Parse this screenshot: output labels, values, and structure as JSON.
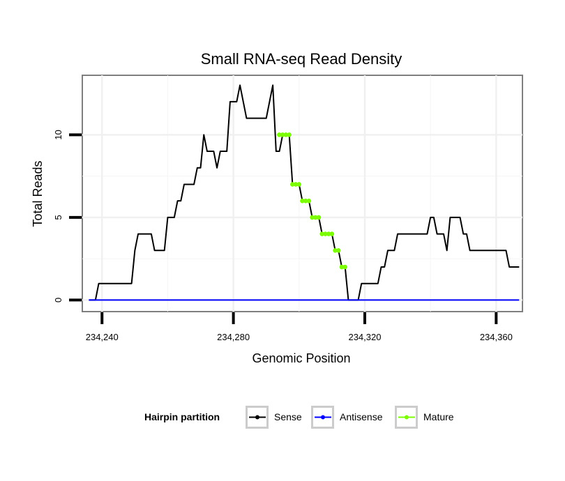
{
  "chart_data": {
    "type": "line",
    "title": "Small RNA-seq Read Density",
    "xlabel": "Genomic Position",
    "ylabel": "Total Reads",
    "xlim": [
      234234,
      234368
    ],
    "ylim": [
      -0.7,
      13.6
    ],
    "x_ticks": [
      234240,
      234280,
      234320,
      234360
    ],
    "x_tick_labels": [
      "234,240",
      "234,280",
      "234,320",
      "234,360"
    ],
    "y_ticks": [
      0,
      5,
      10
    ],
    "y_tick_labels": [
      "0",
      "5",
      "10"
    ],
    "grid": true,
    "legend": {
      "title": "Hairpin partition",
      "placement": "bottom",
      "entries": [
        {
          "name": "Sense",
          "color": "#000000"
        },
        {
          "name": "Antisense",
          "color": "#0000ff"
        },
        {
          "name": "Mature",
          "color": "#7cfc00"
        }
      ]
    },
    "series": [
      {
        "name": "Sense",
        "color": "#000000",
        "points": [
          [
            234236,
            0
          ],
          [
            234238,
            0
          ],
          [
            234239,
            1
          ],
          [
            234240,
            1
          ],
          [
            234241,
            1
          ],
          [
            234242,
            1
          ],
          [
            234243,
            1
          ],
          [
            234244,
            1
          ],
          [
            234245,
            1
          ],
          [
            234246,
            1
          ],
          [
            234247,
            1
          ],
          [
            234248,
            1
          ],
          [
            234249,
            1
          ],
          [
            234250,
            3
          ],
          [
            234251,
            4
          ],
          [
            234252,
            4
          ],
          [
            234253,
            4
          ],
          [
            234254,
            4
          ],
          [
            234255,
            4
          ],
          [
            234256,
            3
          ],
          [
            234257,
            3
          ],
          [
            234258,
            3
          ],
          [
            234259,
            3
          ],
          [
            234260,
            5
          ],
          [
            234261,
            5
          ],
          [
            234262,
            5
          ],
          [
            234263,
            6
          ],
          [
            234264,
            6
          ],
          [
            234265,
            7
          ],
          [
            234266,
            7
          ],
          [
            234267,
            7
          ],
          [
            234268,
            7
          ],
          [
            234269,
            8
          ],
          [
            234270,
            8
          ],
          [
            234271,
            10
          ],
          [
            234272,
            9
          ],
          [
            234273,
            9
          ],
          [
            234274,
            9
          ],
          [
            234275,
            8
          ],
          [
            234276,
            9
          ],
          [
            234277,
            9
          ],
          [
            234278,
            9
          ],
          [
            234279,
            12
          ],
          [
            234280,
            12
          ],
          [
            234281,
            12
          ],
          [
            234282,
            13
          ],
          [
            234283,
            12
          ],
          [
            234284,
            11
          ],
          [
            234285,
            11
          ],
          [
            234286,
            11
          ],
          [
            234287,
            11
          ],
          [
            234288,
            11
          ],
          [
            234289,
            11
          ],
          [
            234290,
            11
          ],
          [
            234291,
            12
          ],
          [
            234292,
            13
          ],
          [
            234293,
            9
          ],
          [
            234294,
            9
          ],
          [
            234295,
            10
          ],
          [
            234296,
            10
          ],
          [
            234297,
            10
          ],
          [
            234298,
            7
          ],
          [
            234299,
            7
          ],
          [
            234300,
            7
          ],
          [
            234301,
            6
          ],
          [
            234302,
            6
          ],
          [
            234303,
            6
          ],
          [
            234304,
            5
          ],
          [
            234305,
            5
          ],
          [
            234306,
            5
          ],
          [
            234307,
            4
          ],
          [
            234308,
            4
          ],
          [
            234309,
            4
          ],
          [
            234310,
            4
          ],
          [
            234311,
            3
          ],
          [
            234312,
            3
          ],
          [
            234313,
            2
          ],
          [
            234314,
            2
          ],
          [
            234315,
            0
          ],
          [
            234316,
            0
          ],
          [
            234317,
            0
          ],
          [
            234318,
            0
          ],
          [
            234319,
            1
          ],
          [
            234320,
            1
          ],
          [
            234321,
            1
          ],
          [
            234322,
            1
          ],
          [
            234323,
            1
          ],
          [
            234324,
            1
          ],
          [
            234325,
            2
          ],
          [
            234326,
            2
          ],
          [
            234327,
            3
          ],
          [
            234328,
            3
          ],
          [
            234329,
            3
          ],
          [
            234330,
            4
          ],
          [
            234331,
            4
          ],
          [
            234332,
            4
          ],
          [
            234333,
            4
          ],
          [
            234334,
            4
          ],
          [
            234335,
            4
          ],
          [
            234336,
            4
          ],
          [
            234337,
            4
          ],
          [
            234338,
            4
          ],
          [
            234339,
            4
          ],
          [
            234340,
            5
          ],
          [
            234341,
            5
          ],
          [
            234342,
            4
          ],
          [
            234343,
            4
          ],
          [
            234344,
            4
          ],
          [
            234345,
            3
          ],
          [
            234346,
            5
          ],
          [
            234347,
            5
          ],
          [
            234348,
            5
          ],
          [
            234349,
            5
          ],
          [
            234350,
            4
          ],
          [
            234351,
            4
          ],
          [
            234352,
            3
          ],
          [
            234353,
            3
          ],
          [
            234354,
            3
          ],
          [
            234355,
            3
          ],
          [
            234356,
            3
          ],
          [
            234357,
            3
          ],
          [
            234358,
            3
          ],
          [
            234359,
            3
          ],
          [
            234360,
            3
          ],
          [
            234361,
            3
          ],
          [
            234362,
            3
          ],
          [
            234363,
            3
          ],
          [
            234364,
            2
          ],
          [
            234365,
            2
          ],
          [
            234366,
            2
          ],
          [
            234367,
            2
          ]
        ]
      },
      {
        "name": "Antisense",
        "color": "#0000ff",
        "points": [
          [
            234236,
            0
          ],
          [
            234367,
            0
          ]
        ]
      },
      {
        "name": "Mature",
        "color": "#7cfc00",
        "points": [
          [
            234294,
            10
          ],
          [
            234295,
            10
          ],
          [
            234296,
            10
          ],
          [
            234297,
            10
          ],
          [
            234298,
            7
          ],
          [
            234299,
            7
          ],
          [
            234300,
            7
          ],
          [
            234301,
            6
          ],
          [
            234302,
            6
          ],
          [
            234303,
            6
          ],
          [
            234304,
            5
          ],
          [
            234305,
            5
          ],
          [
            234306,
            5
          ],
          [
            234307,
            4
          ],
          [
            234308,
            4
          ],
          [
            234309,
            4
          ],
          [
            234310,
            4
          ],
          [
            234311,
            3
          ],
          [
            234312,
            3
          ],
          [
            234313,
            2
          ],
          [
            234314,
            2
          ]
        ]
      }
    ]
  }
}
